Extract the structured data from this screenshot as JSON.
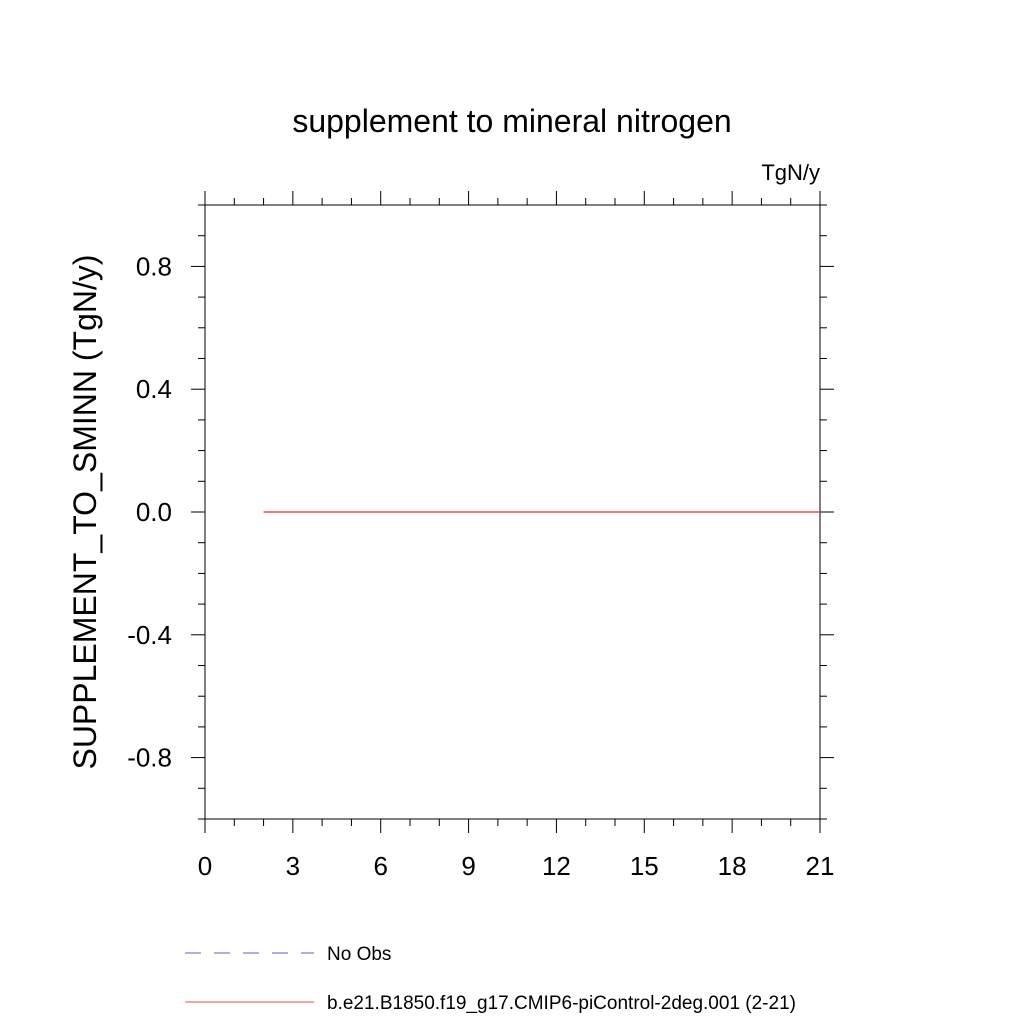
{
  "chart_data": {
    "type": "line",
    "title": "supplement to mineral nitrogen",
    "units": "TgN/y",
    "ylabel": "SUPPLEMENT_TO_SMINN  (TgN/y)",
    "xlabel": "",
    "xlim": [
      0,
      21
    ],
    "ylim": [
      -1.0,
      1.0
    ],
    "x_ticks": [
      0,
      3,
      6,
      9,
      12,
      15,
      18,
      21
    ],
    "x_tick_labels": [
      "0",
      "3",
      "6",
      "9",
      "12",
      "15",
      "18",
      "21"
    ],
    "y_ticks": [
      0.8,
      0.4,
      0.0,
      -0.4,
      -0.8
    ],
    "y_tick_labels": [
      "0.8",
      "0.4",
      "0.0",
      "-0.4",
      "-0.8"
    ],
    "grid": false,
    "legend_position": "bottom",
    "series": [
      {
        "name": "b.e21.B1850.f19_g17.CMIP6-piControl-2deg.001 (2-21)",
        "color": "#e8504a",
        "dash": "solid",
        "x": [
          2,
          3,
          4,
          5,
          6,
          7,
          8,
          9,
          10,
          11,
          12,
          13,
          14,
          15,
          16,
          17,
          18,
          19,
          20,
          21
        ],
        "y": [
          0,
          0,
          0,
          0,
          0,
          0,
          0,
          0,
          0,
          0,
          0,
          0,
          0,
          0,
          0,
          0,
          0,
          0,
          0,
          0
        ]
      },
      {
        "name": "No Obs",
        "color": "#6a5acd",
        "dash": "dashed",
        "x": [],
        "y": []
      }
    ]
  }
}
